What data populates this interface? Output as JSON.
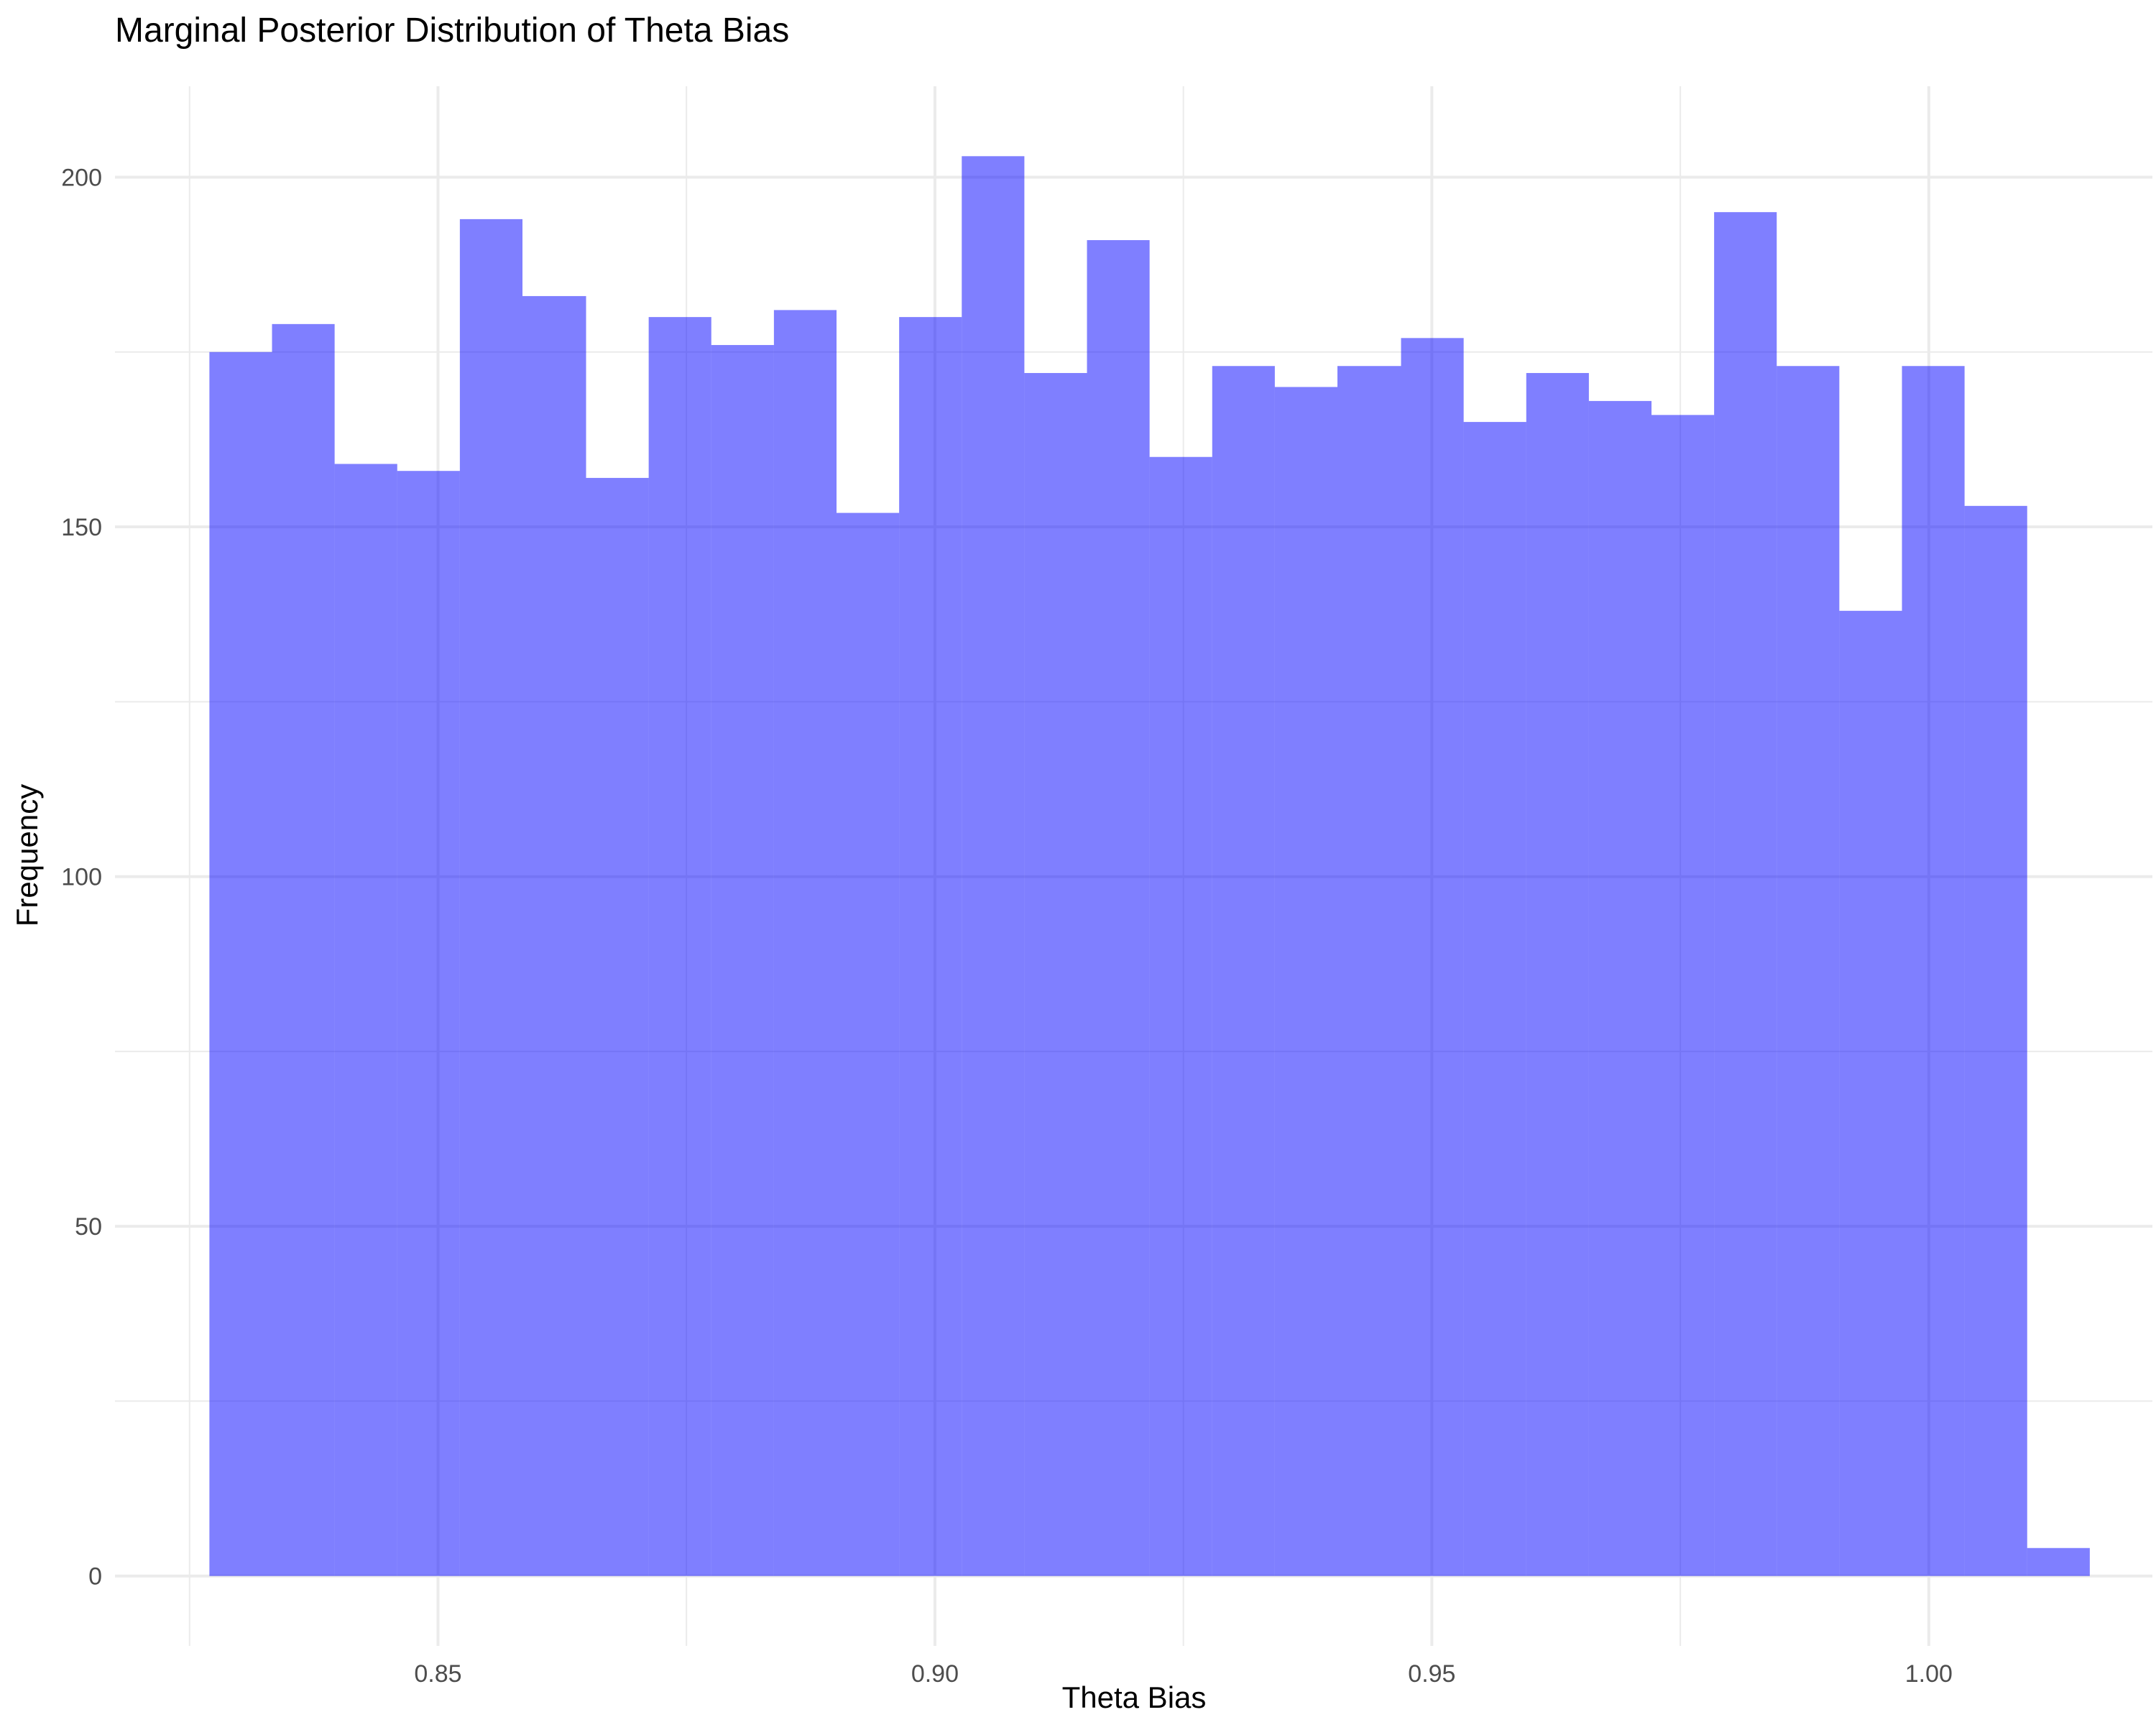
{
  "chart_data": {
    "type": "bar",
    "title": "Marginal Posterior Distribution of Theta Bias",
    "xlabel": "Theta Bias",
    "ylabel": "Frequency",
    "xlim": [
      0.8175,
      1.0225
    ],
    "ylim": [
      -10,
      213
    ],
    "x_ticks": [
      0.85,
      0.9,
      0.95,
      1.0
    ],
    "x_tick_labels": [
      "0.85",
      "0.90",
      "0.95",
      "1.00"
    ],
    "y_ticks": [
      0,
      50,
      100,
      150,
      200
    ],
    "y_tick_labels": [
      "0",
      "50",
      "100",
      "150",
      "200"
    ],
    "grid": true,
    "bar_color": "#0000ff",
    "bar_opacity": 0.5,
    "bins": [
      {
        "x0": 0.827,
        "x1": 0.8333,
        "count": 175
      },
      {
        "x0": 0.8333,
        "x1": 0.8396,
        "count": 179
      },
      {
        "x0": 0.8396,
        "x1": 0.8459,
        "count": 159
      },
      {
        "x0": 0.8459,
        "x1": 0.8522,
        "count": 158
      },
      {
        "x0": 0.8522,
        "x1": 0.8585,
        "count": 194
      },
      {
        "x0": 0.8585,
        "x1": 0.8649,
        "count": 183
      },
      {
        "x0": 0.8649,
        "x1": 0.8712,
        "count": 157
      },
      {
        "x0": 0.8712,
        "x1": 0.8775,
        "count": 180
      },
      {
        "x0": 0.8775,
        "x1": 0.8838,
        "count": 176
      },
      {
        "x0": 0.8838,
        "x1": 0.8901,
        "count": 181
      },
      {
        "x0": 0.8901,
        "x1": 0.8964,
        "count": 152
      },
      {
        "x0": 0.8964,
        "x1": 0.9027,
        "count": 180
      },
      {
        "x0": 0.9027,
        "x1": 0.909,
        "count": 203
      },
      {
        "x0": 0.909,
        "x1": 0.9153,
        "count": 172
      },
      {
        "x0": 0.9153,
        "x1": 0.9216,
        "count": 191
      },
      {
        "x0": 0.9216,
        "x1": 0.9279,
        "count": 160
      },
      {
        "x0": 0.9279,
        "x1": 0.9342,
        "count": 173
      },
      {
        "x0": 0.9342,
        "x1": 0.9405,
        "count": 170
      },
      {
        "x0": 0.9405,
        "x1": 0.9469,
        "count": 173
      },
      {
        "x0": 0.9469,
        "x1": 0.9532,
        "count": 177
      },
      {
        "x0": 0.9532,
        "x1": 0.9595,
        "count": 165
      },
      {
        "x0": 0.9595,
        "x1": 0.9658,
        "count": 172
      },
      {
        "x0": 0.9658,
        "x1": 0.9721,
        "count": 168
      },
      {
        "x0": 0.9721,
        "x1": 0.9784,
        "count": 166
      },
      {
        "x0": 0.9784,
        "x1": 0.9847,
        "count": 195
      },
      {
        "x0": 0.9847,
        "x1": 0.991,
        "count": 173
      },
      {
        "x0": 0.991,
        "x1": 0.9973,
        "count": 138
      },
      {
        "x0": 0.9973,
        "x1": 1.0036,
        "count": 173
      },
      {
        "x0": 1.0036,
        "x1": 1.0099,
        "count": 153
      },
      {
        "x0": 1.0099,
        "x1": 1.0162,
        "count": 4
      }
    ]
  }
}
